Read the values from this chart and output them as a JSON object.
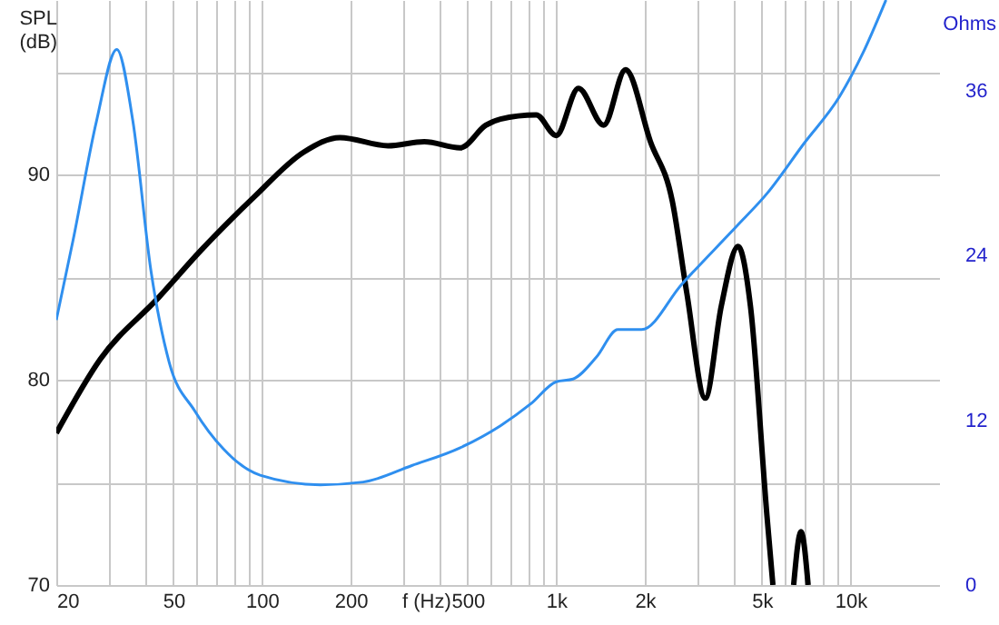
{
  "chart_data": {
    "type": "line",
    "xlabel": "f (Hz)",
    "ylabel": "SPL (dB)",
    "y2label": "Ohms",
    "log": "x",
    "grid": true,
    "xlim": [
      20,
      20000
    ],
    "xticks": [
      20,
      {
        "value": 30,
        "label": null
      },
      {
        "value": 40,
        "label": null
      },
      50,
      {
        "value": 60,
        "label": null
      },
      {
        "value": 70,
        "label": null
      },
      {
        "value": 80,
        "label": null
      },
      {
        "value": 90,
        "label": null
      },
      100,
      200,
      {
        "value": 300,
        "label": null
      },
      {
        "value": 400,
        "label": null
      },
      500,
      {
        "value": 600,
        "label": null
      },
      {
        "value": 700,
        "label": null
      },
      {
        "value": 800,
        "label": null
      },
      {
        "value": 900,
        "label": null
      },
      {
        "value": 1000,
        "label": "1k"
      },
      {
        "value": 2000,
        "label": "2k"
      },
      {
        "value": 3000,
        "label": null
      },
      {
        "value": 4000,
        "label": null
      },
      {
        "value": 5000,
        "label": "5k"
      },
      {
        "value": 6000,
        "label": null
      },
      {
        "value": 7000,
        "label": null
      },
      {
        "value": 8000,
        "label": null
      },
      {
        "value": 9000,
        "label": null
      },
      {
        "value": 10000,
        "label": "10k"
      }
    ],
    "ylim": [
      70,
      98.5
    ],
    "yticks": [
      70,
      {
        "value": 75,
        "label": null
      },
      80,
      {
        "value": 85,
        "label": null
      },
      90,
      {
        "value": 95,
        "label": null
      }
    ],
    "y2lim": [
      0,
      42.6
    ],
    "y2ticks": [
      0,
      12,
      24,
      36
    ],
    "series": [
      {
        "color": "#000000",
        "x": [
          20,
          28.2,
          44.5,
          62,
          94,
          139,
          184,
          268,
          356,
          472,
          576,
          646,
          855,
          1000,
          1190,
          1450,
          1720,
          2090,
          2480,
          2780,
          3210,
          3640,
          4150,
          4570,
          5200,
          5450,
          5900,
          6410,
          6790,
          7180
        ],
        "values": [
          77.4,
          81.0,
          84.0,
          86.3,
          88.9,
          91.1,
          91.8,
          91.4,
          91.6,
          91.3,
          92.4,
          92.7,
          92.9,
          91.9,
          94.2,
          92.4,
          95.1,
          91.6,
          88.7,
          84.2,
          79.1,
          83.6,
          86.5,
          83.6,
          73.4,
          70,
          null,
          70,
          72.6,
          70
        ]
      },
      {
        "color": "#2f8fef",
        "axis": "y2",
        "x": [
          20,
          22.8,
          27.4,
          32.1,
          36.4,
          42,
          48.4,
          59,
          74,
          98.6,
          158,
          221,
          323,
          472,
          646,
          820,
          1000,
          1140,
          1370,
          1620,
          1950,
          2670,
          4090,
          5200,
          6920,
          9200,
          11000,
          13200
        ],
        "values": [
          19.3,
          25.1,
          33.8,
          39.0,
          33.8,
          22.8,
          16.2,
          12.7,
          9.9,
          8.0,
          7.3,
          7.5,
          8.7,
          10.0,
          11.6,
          13.2,
          14.8,
          15.0,
          16.6,
          18.6,
          18.6,
          21.9,
          26.1,
          28.5,
          32.1,
          35.6,
          38.7,
          42.6
        ]
      }
    ]
  }
}
